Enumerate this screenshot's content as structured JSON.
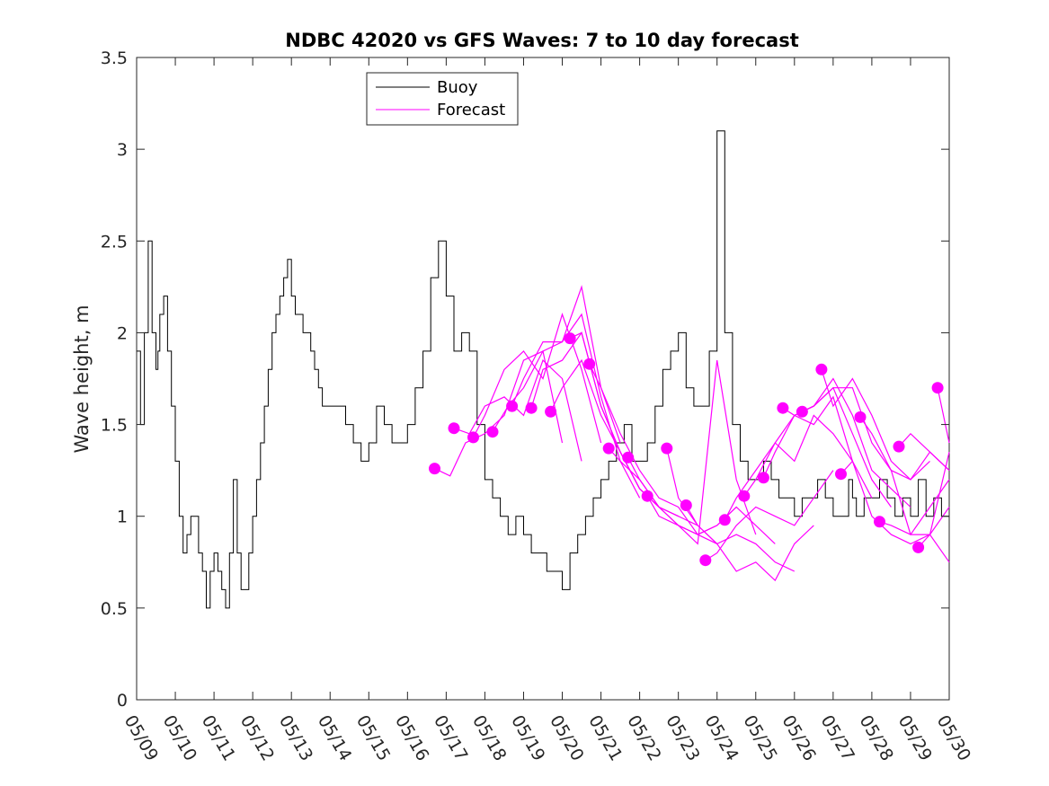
{
  "chart_data": {
    "type": "line",
    "title": "NDBC 42020 vs GFS Waves: 7 to 10 day forecast",
    "ylabel": "Wave height, m",
    "xlabel": "",
    "ylim": [
      0,
      3.5
    ],
    "xlim": [
      0,
      21
    ],
    "grid": false,
    "legend_position": "top-left",
    "x_tick_labels": [
      "05/09",
      "05/10",
      "05/11",
      "05/12",
      "05/13",
      "05/14",
      "05/15",
      "05/16",
      "05/17",
      "05/18",
      "05/19",
      "05/20",
      "05/21",
      "05/22",
      "05/23",
      "05/24",
      "05/25",
      "05/26",
      "05/27",
      "05/28",
      "05/29",
      "05/30"
    ],
    "y_tick_labels": [
      "0",
      "0.5",
      "1",
      "1.5",
      "2",
      "2.5",
      "3",
      "3.5"
    ],
    "legend": [
      {
        "name": "Buoy",
        "color": "#000000"
      },
      {
        "name": "Forecast",
        "color": "#ff00ff"
      }
    ],
    "series": [
      {
        "name": "Buoy",
        "color": "#000000",
        "x": [
          0,
          0.1,
          0.2,
          0.3,
          0.4,
          0.5,
          0.55,
          0.6,
          0.7,
          0.8,
          0.9,
          1.0,
          1.1,
          1.2,
          1.3,
          1.4,
          1.5,
          1.6,
          1.7,
          1.8,
          1.9,
          2.0,
          2.1,
          2.2,
          2.3,
          2.4,
          2.5,
          2.6,
          2.7,
          2.8,
          2.9,
          3.0,
          3.1,
          3.2,
          3.3,
          3.4,
          3.5,
          3.6,
          3.7,
          3.8,
          3.9,
          4.0,
          4.1,
          4.2,
          4.3,
          4.4,
          4.5,
          4.6,
          4.7,
          4.8,
          5.0,
          5.2,
          5.4,
          5.6,
          5.8,
          6.0,
          6.2,
          6.4,
          6.6,
          6.8,
          7.0,
          7.2,
          7.4,
          7.6,
          7.8,
          8.0,
          8.2,
          8.4,
          8.6,
          8.8,
          9.0,
          9.2,
          9.4,
          9.6,
          9.8,
          10.0,
          10.2,
          10.4,
          10.6,
          10.8,
          11.0,
          11.2,
          11.4,
          11.6,
          11.8,
          12.0,
          12.2,
          12.4,
          12.6,
          12.8,
          13.0,
          13.2,
          13.4,
          13.6,
          13.8,
          14.0,
          14.2,
          14.4,
          14.6,
          14.8,
          15.0,
          15.2,
          15.4,
          15.6,
          15.8,
          16.0,
          16.2,
          16.4,
          16.6,
          16.8,
          17.0,
          17.2,
          17.4,
          17.6,
          17.8,
          18.0,
          18.2,
          18.4,
          18.5,
          18.6,
          18.8,
          19.0,
          19.2,
          19.4,
          19.6,
          19.8,
          20.0,
          20.2,
          20.4,
          20.6,
          20.8,
          21.0
        ],
        "y": [
          1.9,
          1.5,
          2.0,
          2.5,
          2.0,
          1.8,
          1.9,
          2.1,
          2.2,
          1.9,
          1.6,
          1.3,
          1.0,
          0.8,
          0.9,
          1.0,
          1.0,
          0.8,
          0.7,
          0.5,
          0.7,
          0.8,
          0.7,
          0.6,
          0.5,
          0.8,
          1.2,
          0.8,
          0.6,
          0.6,
          0.8,
          1.0,
          1.2,
          1.4,
          1.6,
          1.8,
          2.0,
          2.1,
          2.2,
          2.3,
          2.4,
          2.2,
          2.1,
          2.1,
          2.0,
          2.0,
          1.9,
          1.8,
          1.7,
          1.6,
          1.6,
          1.6,
          1.5,
          1.4,
          1.3,
          1.4,
          1.6,
          1.5,
          1.4,
          1.4,
          1.5,
          1.7,
          1.9,
          2.3,
          2.5,
          2.2,
          1.9,
          2.0,
          1.9,
          1.5,
          1.2,
          1.1,
          1.0,
          0.9,
          1.0,
          0.9,
          0.8,
          0.8,
          0.7,
          0.7,
          0.6,
          0.8,
          0.9,
          1.0,
          1.1,
          1.2,
          1.3,
          1.4,
          1.5,
          1.3,
          1.3,
          1.4,
          1.6,
          1.8,
          1.9,
          2.0,
          1.7,
          1.6,
          1.6,
          1.9,
          3.1,
          2.0,
          1.5,
          1.3,
          1.2,
          1.2,
          1.3,
          1.2,
          1.1,
          1.1,
          1.0,
          1.1,
          1.1,
          1.2,
          1.1,
          1.0,
          1.0,
          1.2,
          1.1,
          1.0,
          1.1,
          1.1,
          1.2,
          1.1,
          1.0,
          1.1,
          1.0,
          1.2,
          1.0,
          1.1,
          1.0,
          1.0
        ]
      },
      {
        "name": "Forecast",
        "color": "#ff00ff",
        "runs": [
          {
            "x": [
              7.7,
              8.1,
              8.5,
              9.0,
              9.5,
              10.0,
              10.5,
              11.0
            ],
            "y": [
              1.26,
              1.22,
              1.4,
              1.45,
              1.55,
              1.85,
              1.9,
              1.4
            ]
          },
          {
            "x": [
              8.2,
              8.6,
              9.0,
              9.5,
              10.0,
              10.5,
              11.0,
              11.5
            ],
            "y": [
              1.48,
              1.45,
              1.6,
              1.65,
              1.55,
              1.85,
              1.75,
              1.3
            ]
          },
          {
            "x": [
              8.7,
              9.0,
              9.5,
              10.0,
              10.5,
              11.0,
              11.5,
              12.0
            ],
            "y": [
              1.43,
              1.55,
              1.8,
              1.9,
              1.75,
              2.1,
              1.8,
              1.4
            ]
          },
          {
            "x": [
              9.2,
              9.6,
              10.0,
              10.5,
              11.0,
              11.5,
              12.0,
              12.5
            ],
            "y": [
              1.46,
              1.6,
              1.7,
              1.9,
              1.95,
              2.25,
              1.7,
              1.4
            ]
          },
          {
            "x": [
              9.7,
              10.0,
              10.5,
              11.0,
              11.5,
              12.0,
              12.5,
              13.0
            ],
            "y": [
              1.6,
              1.75,
              1.95,
              1.95,
              2.1,
              1.65,
              1.3,
              1.1
            ]
          },
          {
            "x": [
              10.2,
              10.5,
              11.0,
              11.5,
              12.0,
              12.5,
              13.0,
              13.5
            ],
            "y": [
              1.59,
              1.8,
              1.85,
              2.0,
              1.6,
              1.35,
              1.15,
              1.05
            ]
          },
          {
            "x": [
              10.7,
              11.0,
              11.5,
              12.0,
              12.5,
              13.0,
              13.5,
              14.0
            ],
            "y": [
              1.57,
              1.7,
              1.85,
              1.55,
              1.35,
              1.15,
              1.05,
              1.0
            ]
          },
          {
            "x": [
              11.2,
              11.5,
              12.0,
              12.5,
              13.0,
              13.5,
              14.0,
              14.5
            ],
            "y": [
              1.97,
              2.0,
              1.6,
              1.35,
              1.15,
              1.05,
              1.0,
              0.95
            ]
          },
          {
            "x": [
              11.7,
              12.0,
              12.5,
              13.0,
              13.5,
              14.0,
              14.5,
              15.0
            ],
            "y": [
              1.83,
              1.7,
              1.45,
              1.25,
              1.1,
              1.05,
              0.9,
              0.85
            ]
          },
          {
            "x": [
              12.2,
              12.5,
              13.0,
              13.5,
              14.0,
              14.5,
              15.0,
              15.5
            ],
            "y": [
              1.37,
              1.3,
              1.2,
              1.05,
              0.95,
              0.9,
              0.95,
              1.05
            ]
          },
          {
            "x": [
              12.7,
              13.0,
              13.5,
              14.0,
              14.5,
              15.0,
              15.5,
              16.0
            ],
            "y": [
              1.32,
              1.2,
              1.05,
              0.95,
              0.85,
              1.85,
              1.2,
              0.9
            ]
          },
          {
            "x": [
              13.2,
              13.5,
              14.0,
              14.5,
              15.0,
              15.5,
              16.0,
              16.5
            ],
            "y": [
              1.11,
              1.0,
              0.95,
              0.9,
              0.95,
              1.05,
              0.95,
              0.85
            ]
          },
          {
            "x": [
              13.7,
              14.0,
              14.5,
              15.0,
              15.5,
              16.0,
              16.5,
              17.0
            ],
            "y": [
              1.37,
              1.1,
              0.95,
              0.85,
              0.9,
              0.85,
              0.75,
              0.7
            ]
          },
          {
            "x": [
              14.2,
              14.5,
              15.0,
              15.5,
              16.0,
              16.5,
              17.0,
              17.5
            ],
            "y": [
              1.06,
              0.95,
              0.85,
              0.7,
              0.75,
              0.65,
              0.85,
              0.95
            ]
          },
          {
            "x": [
              14.7,
              15.0,
              15.5,
              16.0,
              16.5,
              17.0,
              17.5,
              18.0
            ],
            "y": [
              0.76,
              0.8,
              0.95,
              1.05,
              1.0,
              0.95,
              1.1,
              1.25
            ]
          },
          {
            "x": [
              15.2,
              15.5,
              16.0,
              16.5,
              17.0,
              17.5,
              18.0,
              18.5
            ],
            "y": [
              0.98,
              1.1,
              1.25,
              1.4,
              1.3,
              1.55,
              1.45,
              1.3
            ]
          },
          {
            "x": [
              15.7,
              16.0,
              16.5,
              17.0,
              17.5,
              18.0,
              18.5,
              19.0
            ],
            "y": [
              1.11,
              1.2,
              1.4,
              1.55,
              1.5,
              1.65,
              1.3,
              1.1
            ]
          },
          {
            "x": [
              16.2,
              16.5,
              17.0,
              17.5,
              18.0,
              18.5,
              19.0,
              19.5
            ],
            "y": [
              1.21,
              1.35,
              1.55,
              1.6,
              1.7,
              1.45,
              1.2,
              1.05
            ]
          },
          {
            "x": [
              16.7,
              17.0,
              17.5,
              18.0,
              18.5,
              19.0,
              19.5,
              20.0
            ],
            "y": [
              1.59,
              1.55,
              1.6,
              1.75,
              1.55,
              1.25,
              1.15,
              1.05
            ]
          },
          {
            "x": [
              17.2,
              17.5,
              18.0,
              18.5,
              19.0,
              19.5,
              20.0,
              20.5
            ],
            "y": [
              1.57,
              1.6,
              1.7,
              1.7,
              1.4,
              1.25,
              1.2,
              1.3
            ]
          },
          {
            "x": [
              17.7,
              18.0,
              18.5,
              19.0,
              19.5,
              20.0,
              20.5,
              21.0
            ],
            "y": [
              1.8,
              1.6,
              1.75,
              1.55,
              1.3,
              1.2,
              1.35,
              1.25
            ]
          },
          {
            "x": [
              18.2,
              18.5,
              19.0,
              19.5,
              20.0,
              20.5,
              21.0
            ],
            "y": [
              1.23,
              1.3,
              1.0,
              0.9,
              0.85,
              0.9,
              0.75
            ]
          },
          {
            "x": [
              18.7,
              19.0,
              19.5,
              20.0,
              20.5,
              21.0
            ],
            "y": [
              1.54,
              1.45,
              1.25,
              0.9,
              0.9,
              1.05
            ]
          },
          {
            "x": [
              19.2,
              19.5,
              20.0,
              20.5,
              21.0
            ],
            "y": [
              0.97,
              0.95,
              0.9,
              1.05,
              1.2
            ]
          },
          {
            "x": [
              19.7,
              20.0,
              20.5,
              21.0
            ],
            "y": [
              1.38,
              1.45,
              1.35,
              1.25
            ]
          },
          {
            "x": [
              20.2,
              20.5,
              21.0
            ],
            "y": [
              0.83,
              0.9,
              1.35
            ]
          },
          {
            "x": [
              20.7,
              21.0
            ],
            "y": [
              1.7,
              1.4
            ]
          }
        ],
        "markers": {
          "x": [
            7.7,
            8.2,
            8.7,
            9.2,
            9.7,
            10.2,
            10.7,
            11.2,
            11.7,
            12.2,
            12.7,
            13.2,
            13.7,
            14.2,
            14.7,
            15.2,
            15.7,
            16.2,
            16.7,
            17.2,
            17.7,
            18.2,
            18.7,
            19.2,
            19.7,
            20.2,
            20.7
          ],
          "y": [
            1.26,
            1.48,
            1.43,
            1.46,
            1.6,
            1.59,
            1.57,
            1.97,
            1.83,
            1.37,
            1.32,
            1.11,
            1.37,
            1.06,
            0.76,
            0.98,
            1.11,
            1.21,
            1.59,
            1.57,
            1.8,
            1.23,
            1.54,
            0.97,
            1.38,
            0.83,
            1.7
          ]
        }
      }
    ]
  }
}
